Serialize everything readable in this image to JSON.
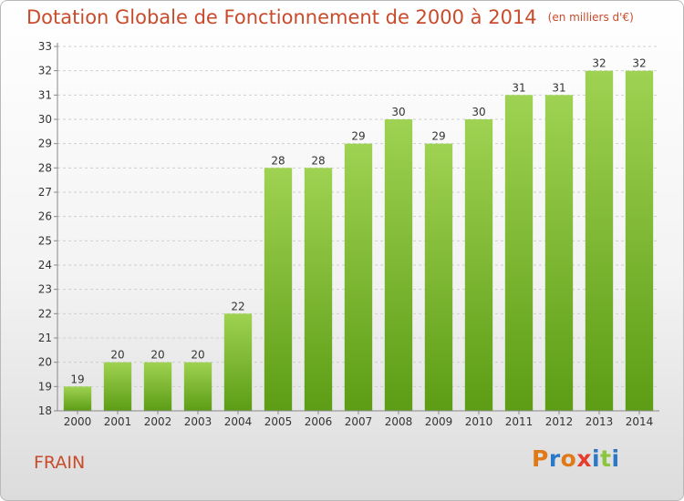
{
  "page": {
    "title": "Dotation Globale de Fonctionnement de 2000 à 2014",
    "unit": "(en milliers d'€)",
    "commune": "FRAIN",
    "logo": {
      "text": "Proxiti",
      "colors": [
        "#e07a18",
        "#2a78c8",
        "#e07a18",
        "#e63c2e",
        "#2a78c8",
        "#8cc63e",
        "#2a78c8"
      ]
    }
  },
  "colors": {
    "bar_top": "#9fd252",
    "bar_bottom": "#5c9d15",
    "title": "#c84b2b",
    "text": "#333333",
    "grid": "#cfcfcf"
  },
  "chart_data": {
    "type": "bar",
    "categories": [
      "2000",
      "2001",
      "2002",
      "2003",
      "2004",
      "2005",
      "2006",
      "2007",
      "2008",
      "2009",
      "2010",
      "2011",
      "2012",
      "2013",
      "2014"
    ],
    "values": [
      19,
      20,
      20,
      20,
      22,
      28,
      28,
      29,
      30,
      29,
      30,
      31,
      31,
      32,
      32
    ],
    "title": "Dotation Globale de Fonctionnement de 2000 à 2014",
    "subtitle": "(en milliers d'€)",
    "ylim": [
      18,
      33
    ],
    "yticks": [
      18,
      19,
      20,
      21,
      22,
      23,
      24,
      25,
      26,
      27,
      28,
      29,
      30,
      31,
      32,
      33
    ],
    "grid": true,
    "data_labels": true
  }
}
